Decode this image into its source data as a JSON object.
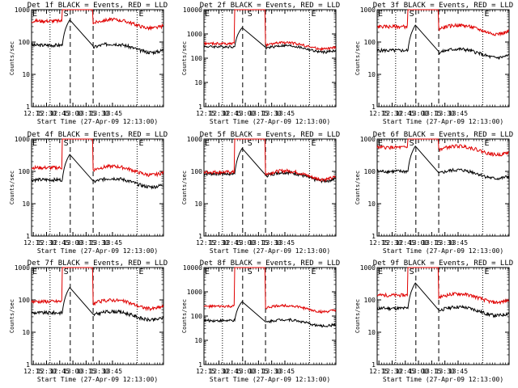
{
  "colors": {
    "events": "#000000",
    "lld": "#e00000",
    "background": "#ffffff"
  },
  "chart_data": [
    {
      "type": "line",
      "title": "Det 1f BLACK = Events, RED = LLD",
      "xlabel": "Start Time (27-Apr-09 12:13:00)",
      "ylabel": "Counts/sec",
      "xticks": [
        "12:15",
        "12:30",
        "12:45",
        "13:00",
        "13:15",
        "13:30",
        "13:45"
      ],
      "yticks": [
        "1",
        "10",
        "100",
        "1000"
      ],
      "yscale": "log",
      "ylim": [
        1,
        1000
      ],
      "xlim_min": [
        13,
        163
      ],
      "markers": [
        {
          "label": "S",
          "t": [
            48.5,
            49.5
          ]
        },
        {
          "label": "E",
          "t": [
            134,
            135
          ]
        }
      ],
      "dotted_t": [
        34,
        133
      ],
      "dashed_t": [
        57,
        83
      ],
      "series": [
        {
          "name": "Events",
          "base": 80,
          "saturated": false
        },
        {
          "name": "LLD",
          "base": 450,
          "saturated": true
        }
      ]
    },
    {
      "type": "line",
      "title": "Det 2f BLACK = Events, RED = LLD",
      "xlabel": "Start Time (27-Apr-09 12:13:00)",
      "ylabel": "Counts/sec",
      "xticks": [
        "12:15",
        "12:30",
        "12:45",
        "13:00",
        "13:15",
        "13:30",
        "13:45"
      ],
      "yticks": [
        "1",
        "10",
        "100",
        "1000",
        "10000"
      ],
      "yscale": "log",
      "ylim": [
        1,
        10000
      ],
      "xlim_min": [
        13,
        163
      ],
      "markers": [
        {
          "label": "S",
          "t": [
            61.5,
            62.5
          ]
        },
        {
          "label": "E",
          "t": [
            134,
            135
          ]
        }
      ],
      "dotted_t": [
        34,
        133
      ],
      "dashed_t": [
        57,
        83
      ],
      "series": [
        {
          "name": "Events",
          "base": 300,
          "saturated": false
        },
        {
          "name": "LLD",
          "base": 400,
          "saturated": true
        }
      ]
    },
    {
      "type": "line",
      "title": "Det 3f BLACK = Events, RED = LLD",
      "xlabel": "Start Time (27-Apr-09 12:13:00)",
      "ylabel": "Counts/sec",
      "xticks": [
        "12:15",
        "12:30",
        "12:45",
        "13:00",
        "13:15",
        "13:30",
        "13:45"
      ],
      "yticks": [
        "1",
        "10",
        "100",
        "1000"
      ],
      "yscale": "log",
      "ylim": [
        1,
        1000
      ],
      "xlim_min": [
        13,
        163
      ],
      "markers": [
        {
          "label": "S",
          "t": [
            48.5,
            49.5
          ]
        },
        {
          "label": "E",
          "t": [
            134,
            135
          ]
        }
      ],
      "dotted_t": [
        34,
        133
      ],
      "dashed_t": [
        57,
        83
      ],
      "series": [
        {
          "name": "Events",
          "base": 55,
          "saturated": false
        },
        {
          "name": "LLD",
          "base": 300,
          "saturated": true
        }
      ]
    },
    {
      "type": "line",
      "title": "Det 4f BLACK = Events, RED = LLD",
      "xlabel": "Start Time (27-Apr-09 12:13:00)",
      "ylabel": "Counts/sec",
      "xticks": [
        "12:15",
        "12:30",
        "12:45",
        "13:00",
        "13:15",
        "13:30",
        "13:45"
      ],
      "yticks": [
        "1",
        "10",
        "100",
        "1000"
      ],
      "yscale": "log",
      "ylim": [
        1,
        1000
      ],
      "xlim_min": [
        13,
        163
      ],
      "markers": [
        {
          "label": "S",
          "t": [
            48.5,
            49.5
          ]
        },
        {
          "label": "E",
          "t": [
            134,
            135
          ]
        }
      ],
      "dotted_t": [
        34,
        133
      ],
      "dashed_t": [
        57,
        83
      ],
      "series": [
        {
          "name": "Events",
          "base": 55,
          "saturated": false
        },
        {
          "name": "LLD",
          "base": 130,
          "saturated": true
        }
      ]
    },
    {
      "type": "line",
      "title": "Det 5f BLACK = Events, RED = LLD",
      "xlabel": "Start Time (27-Apr-09 12:13:00)",
      "ylabel": "Counts/sec",
      "xticks": [
        "12:15",
        "12:30",
        "12:45",
        "13:00",
        "13:15",
        "13:30",
        "13:45"
      ],
      "yticks": [
        "1",
        "10",
        "100",
        "1000"
      ],
      "yscale": "log",
      "ylim": [
        1,
        1000
      ],
      "xlim_min": [
        13,
        163
      ],
      "markers": [
        {
          "label": "S",
          "t": [
            61.5,
            62.5
          ]
        },
        {
          "label": "E",
          "t": [
            134,
            135
          ]
        }
      ],
      "dotted_t": [
        34,
        133
      ],
      "dashed_t": [
        57,
        83
      ],
      "series": [
        {
          "name": "Events",
          "base": 85,
          "saturated": false
        },
        {
          "name": "LLD",
          "base": 95,
          "saturated": true
        }
      ]
    },
    {
      "type": "line",
      "title": "Det 6f BLACK = Events, RED = LLD",
      "xlabel": "Start Time (27-Apr-09 12:13:00)",
      "ylabel": "Counts/sec",
      "xticks": [
        "12:15",
        "12:30",
        "12:45",
        "13:00",
        "13:15",
        "13:30",
        "13:45"
      ],
      "yticks": [
        "1",
        "10",
        "100",
        "1000"
      ],
      "yscale": "log",
      "ylim": [
        1,
        1000
      ],
      "xlim_min": [
        13,
        163
      ],
      "markers": [
        {
          "label": "S",
          "t": [
            48.5,
            49.5
          ]
        },
        {
          "label": "E",
          "t": [
            134,
            135
          ]
        }
      ],
      "dotted_t": [
        34,
        133
      ],
      "dashed_t": [
        57,
        83
      ],
      "series": [
        {
          "name": "Events",
          "base": 100,
          "saturated": false
        },
        {
          "name": "LLD",
          "base": 550,
          "saturated": true
        }
      ]
    },
    {
      "type": "line",
      "title": "Det 7f BLACK = Events, RED = LLD",
      "xlabel": "Start Time (27-Apr-09 12:13:00)",
      "ylabel": "Counts/sec",
      "xticks": [
        "12:15",
        "12:30",
        "12:45",
        "13:00",
        "13:15",
        "13:30",
        "13:45"
      ],
      "yticks": [
        "1",
        "10",
        "100",
        "1000"
      ],
      "yscale": "log",
      "ylim": [
        1,
        1000
      ],
      "xlim_min": [
        13,
        163
      ],
      "markers": [
        {
          "label": "S",
          "t": [
            48.5,
            49.5
          ]
        },
        {
          "label": "E",
          "t": [
            134,
            135
          ]
        }
      ],
      "dotted_t": [
        34,
        133
      ],
      "dashed_t": [
        57,
        83
      ],
      "series": [
        {
          "name": "Events",
          "base": 40,
          "saturated": false
        },
        {
          "name": "LLD",
          "base": 90,
          "saturated": true
        }
      ]
    },
    {
      "type": "line",
      "title": "Det 8f BLACK = Events, RED = LLD",
      "xlabel": "Start Time (27-Apr-09 12:13:00)",
      "ylabel": "Counts/sec",
      "xticks": [
        "12:15",
        "12:30",
        "12:45",
        "13:00",
        "13:15",
        "13:30",
        "13:45"
      ],
      "yticks": [
        "1",
        "10",
        "100",
        "1000",
        "10000"
      ],
      "yscale": "log",
      "ylim": [
        1,
        10000
      ],
      "xlim_min": [
        13,
        163
      ],
      "markers": [
        {
          "label": "S",
          "t": [
            61.5,
            62.5
          ]
        },
        {
          "label": "E",
          "t": [
            134,
            135
          ]
        }
      ],
      "dotted_t": [
        34,
        133
      ],
      "dashed_t": [
        57,
        83
      ],
      "series": [
        {
          "name": "Events",
          "base": 65,
          "saturated": false
        },
        {
          "name": "LLD",
          "base": 250,
          "saturated": true
        }
      ]
    },
    {
      "type": "line",
      "title": "Det 9f BLACK = Events, RED = LLD",
      "xlabel": "Start Time (27-Apr-09 12:13:00)",
      "ylabel": "Counts/sec",
      "xticks": [
        "12:15",
        "12:30",
        "12:45",
        "13:00",
        "13:15",
        "13:30",
        "13:45"
      ],
      "yticks": [
        "1",
        "10",
        "100",
        "1000"
      ],
      "yscale": "log",
      "ylim": [
        1,
        1000
      ],
      "xlim_min": [
        13,
        163
      ],
      "markers": [
        {
          "label": "S",
          "t": [
            48.5,
            49.5
          ]
        },
        {
          "label": "E",
          "t": [
            134,
            135
          ]
        }
      ],
      "dotted_t": [
        34,
        133
      ],
      "dashed_t": [
        57,
        83
      ],
      "series": [
        {
          "name": "Events",
          "base": 55,
          "saturated": false
        },
        {
          "name": "LLD",
          "base": 140,
          "saturated": true
        }
      ]
    }
  ]
}
